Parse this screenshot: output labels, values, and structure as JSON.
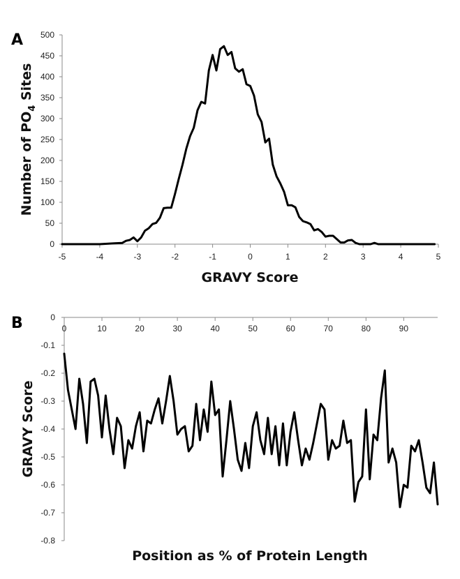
{
  "chart_data": [
    {
      "panel_label": "A",
      "type": "line",
      "title": "",
      "xlabel": "GRAVY Score",
      "ylabel_main": "Number of PO",
      "ylabel_sub": "4",
      "ylabel_tail": " Sites",
      "xlim": [
        -5,
        5
      ],
      "ylim": [
        0,
        500
      ],
      "xticks": [
        "-5",
        "-4",
        "-3",
        "-2",
        "-1",
        "0",
        "1",
        "2",
        "3",
        "4",
        "5"
      ],
      "xtick_values": [
        -5,
        -4,
        -3,
        -2,
        -1,
        0,
        1,
        2,
        3,
        4,
        5
      ],
      "yticks": [
        "0",
        "50",
        "100",
        "150",
        "200",
        "250",
        "300",
        "350",
        "400",
        "450",
        "500"
      ],
      "ytick_values": [
        0,
        50,
        100,
        150,
        200,
        250,
        300,
        350,
        400,
        450,
        500
      ],
      "grid": false,
      "series": [
        {
          "x": [
            -5.0,
            -4.5,
            -4.0,
            -3.6,
            -3.4,
            -3.3,
            -3.2,
            -3.1,
            -3.0,
            -2.9,
            -2.8,
            -2.7,
            -2.6,
            -2.5,
            -2.4,
            -2.3,
            -2.2,
            -2.1,
            -2.0,
            -1.9,
            -1.8,
            -1.7,
            -1.6,
            -1.5,
            -1.4,
            -1.3,
            -1.2,
            -1.1,
            -1.0,
            -0.9,
            -0.8,
            -0.7,
            -0.6,
            -0.5,
            -0.4,
            -0.3,
            -0.2,
            -0.1,
            0.0,
            0.1,
            0.2,
            0.3,
            0.4,
            0.5,
            0.6,
            0.7,
            0.8,
            0.9,
            1.0,
            1.1,
            1.2,
            1.3,
            1.4,
            1.5,
            1.6,
            1.7,
            1.8,
            1.9,
            2.0,
            2.1,
            2.2,
            2.3,
            2.4,
            2.5,
            2.6,
            2.7,
            2.8,
            2.9,
            3.0,
            3.1,
            3.2,
            3.3,
            3.4,
            3.6,
            4.0,
            4.5,
            4.9
          ],
          "y": [
            0,
            0,
            0,
            2,
            3,
            8,
            10,
            16,
            7,
            16,
            32,
            38,
            48,
            51,
            63,
            86,
            87,
            87,
            120,
            156,
            190,
            228,
            258,
            278,
            320,
            340,
            336,
            415,
            452,
            415,
            466,
            473,
            452,
            459,
            420,
            412,
            418,
            382,
            378,
            355,
            310,
            292,
            243,
            252,
            190,
            162,
            145,
            125,
            93,
            93,
            88,
            65,
            55,
            52,
            48,
            33,
            36,
            29,
            18,
            20,
            20,
            12,
            4,
            4,
            9,
            10,
            3,
            0,
            0,
            0,
            0,
            3,
            0,
            0,
            0,
            0,
            0
          ]
        }
      ]
    },
    {
      "panel_label": "B",
      "type": "line",
      "title": "",
      "xlabel": "Position as % of Protein Length",
      "ylabel": "GRAVY Score",
      "xlim": [
        0,
        99
      ],
      "ylim": [
        -0.8,
        0
      ],
      "xticks": [
        "0",
        "10",
        "20",
        "30",
        "40",
        "50",
        "60",
        "70",
        "80",
        "90"
      ],
      "xtick_values": [
        0,
        10,
        20,
        30,
        40,
        50,
        60,
        70,
        80,
        90
      ],
      "yticks": [
        "0",
        "-0.1",
        "-0.2",
        "-0.3",
        "-0.4",
        "-0.5",
        "-0.6",
        "-0.7",
        "-0.8"
      ],
      "ytick_values": [
        0,
        -0.1,
        -0.2,
        -0.3,
        -0.4,
        -0.5,
        -0.6,
        -0.7,
        -0.8
      ],
      "xaxis_position": "top",
      "grid": false,
      "series": [
        {
          "x": [
            0,
            1,
            2,
            3,
            4,
            5,
            6,
            7,
            8,
            9,
            10,
            11,
            12,
            13,
            14,
            15,
            16,
            17,
            18,
            19,
            20,
            21,
            22,
            23,
            24,
            25,
            26,
            27,
            28,
            29,
            30,
            31,
            32,
            33,
            34,
            35,
            36,
            37,
            38,
            39,
            40,
            41,
            42,
            43,
            44,
            45,
            46,
            47,
            48,
            49,
            50,
            51,
            52,
            53,
            54,
            55,
            56,
            57,
            58,
            59,
            60,
            61,
            62,
            63,
            64,
            65,
            66,
            67,
            68,
            69,
            70,
            71,
            72,
            73,
            74,
            75,
            76,
            77,
            78,
            79,
            80,
            81,
            82,
            83,
            84,
            85,
            86,
            87,
            88,
            89,
            90,
            91,
            92,
            93,
            94,
            95,
            96,
            97,
            98,
            99
          ],
          "y": [
            -0.13,
            -0.26,
            -0.33,
            -0.4,
            -0.22,
            -0.31,
            -0.45,
            -0.23,
            -0.22,
            -0.28,
            -0.43,
            -0.28,
            -0.4,
            -0.49,
            -0.36,
            -0.39,
            -0.54,
            -0.44,
            -0.47,
            -0.39,
            -0.34,
            -0.48,
            -0.37,
            -0.38,
            -0.33,
            -0.29,
            -0.38,
            -0.3,
            -0.21,
            -0.3,
            -0.42,
            -0.4,
            -0.39,
            -0.48,
            -0.46,
            -0.31,
            -0.44,
            -0.33,
            -0.41,
            -0.23,
            -0.35,
            -0.33,
            -0.57,
            -0.44,
            -0.3,
            -0.4,
            -0.51,
            -0.55,
            -0.45,
            -0.54,
            -0.39,
            -0.34,
            -0.44,
            -0.49,
            -0.36,
            -0.49,
            -0.39,
            -0.53,
            -0.38,
            -0.53,
            -0.41,
            -0.34,
            -0.44,
            -0.53,
            -0.47,
            -0.51,
            -0.45,
            -0.38,
            -0.31,
            -0.33,
            -0.51,
            -0.44,
            -0.47,
            -0.46,
            -0.37,
            -0.45,
            -0.44,
            -0.66,
            -0.59,
            -0.57,
            -0.33,
            -0.58,
            -0.42,
            -0.44,
            -0.29,
            -0.19,
            -0.52,
            -0.47,
            -0.52,
            -0.68,
            -0.6,
            -0.61,
            -0.46,
            -0.48,
            -0.44,
            -0.52,
            -0.61,
            -0.63,
            -0.52,
            -0.67
          ]
        }
      ]
    }
  ]
}
